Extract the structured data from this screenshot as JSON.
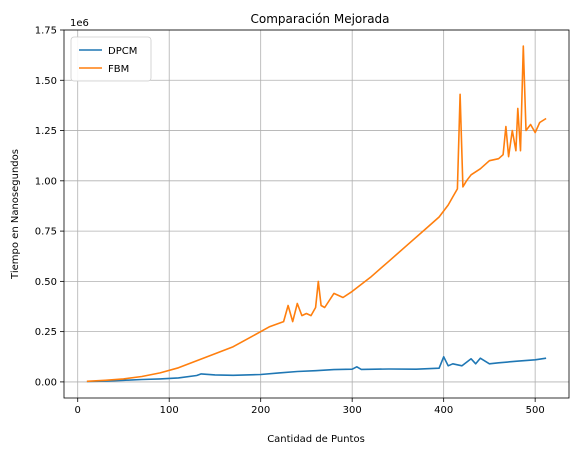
{
  "chart_data": {
    "type": "line",
    "title": "Comparación Mejorada",
    "xlabel": "Cantidad de Puntos",
    "ylabel": "Tiempo en Nanosegundos",
    "y_offset_label": "1e6",
    "xlim": [
      -15,
      537
    ],
    "ylim": [
      -80000,
      1750000
    ],
    "x_ticks": [
      0,
      100,
      200,
      300,
      400,
      500
    ],
    "x_tick_labels": [
      "0",
      "100",
      "200",
      "300",
      "400",
      "500"
    ],
    "y_ticks": [
      0,
      250000,
      500000,
      750000,
      1000000,
      1250000,
      1500000,
      1750000
    ],
    "y_tick_labels": [
      "0.00",
      "0.25",
      "0.50",
      "0.75",
      "1.00",
      "1.25",
      "1.50",
      "1.75"
    ],
    "grid": true,
    "legend_position": "top-left",
    "series": [
      {
        "name": "DPCM",
        "color": "#1f77b4",
        "x": [
          10,
          30,
          50,
          70,
          90,
          110,
          130,
          135,
          150,
          170,
          200,
          220,
          240,
          260,
          280,
          300,
          305,
          310,
          340,
          370,
          395,
          400,
          405,
          410,
          420,
          430,
          435,
          440,
          450,
          460,
          480,
          500,
          512
        ],
        "y": [
          2000,
          4000,
          8000,
          12000,
          15000,
          20000,
          32000,
          40000,
          35000,
          33000,
          37000,
          45000,
          52000,
          56000,
          61000,
          63000,
          75000,
          62000,
          64000,
          63000,
          68000,
          125000,
          80000,
          90000,
          80000,
          115000,
          90000,
          118000,
          90000,
          95000,
          103000,
          110000,
          118000
        ]
      },
      {
        "name": "FBM",
        "color": "#ff7f0e",
        "x": [
          10,
          30,
          50,
          70,
          90,
          110,
          130,
          150,
          170,
          190,
          210,
          225,
          230,
          235,
          240,
          245,
          250,
          255,
          260,
          263,
          266,
          270,
          280,
          290,
          300,
          320,
          340,
          360,
          380,
          395,
          405,
          410,
          415,
          418,
          421,
          425,
          430,
          440,
          450,
          460,
          465,
          468,
          471,
          475,
          479,
          481,
          484,
          487,
          490,
          495,
          500,
          505,
          512
        ],
        "y": [
          3000,
          8000,
          15000,
          27000,
          45000,
          70000,
          105000,
          140000,
          175000,
          225000,
          275000,
          300000,
          380000,
          300000,
          390000,
          330000,
          340000,
          330000,
          370000,
          500000,
          380000,
          370000,
          440000,
          420000,
          450000,
          520000,
          600000,
          680000,
          760000,
          820000,
          880000,
          920000,
          960000,
          1430000,
          970000,
          1000000,
          1030000,
          1060000,
          1100000,
          1110000,
          1130000,
          1270000,
          1120000,
          1250000,
          1150000,
          1360000,
          1150000,
          1670000,
          1250000,
          1280000,
          1240000,
          1290000,
          1310000
        ]
      }
    ]
  }
}
